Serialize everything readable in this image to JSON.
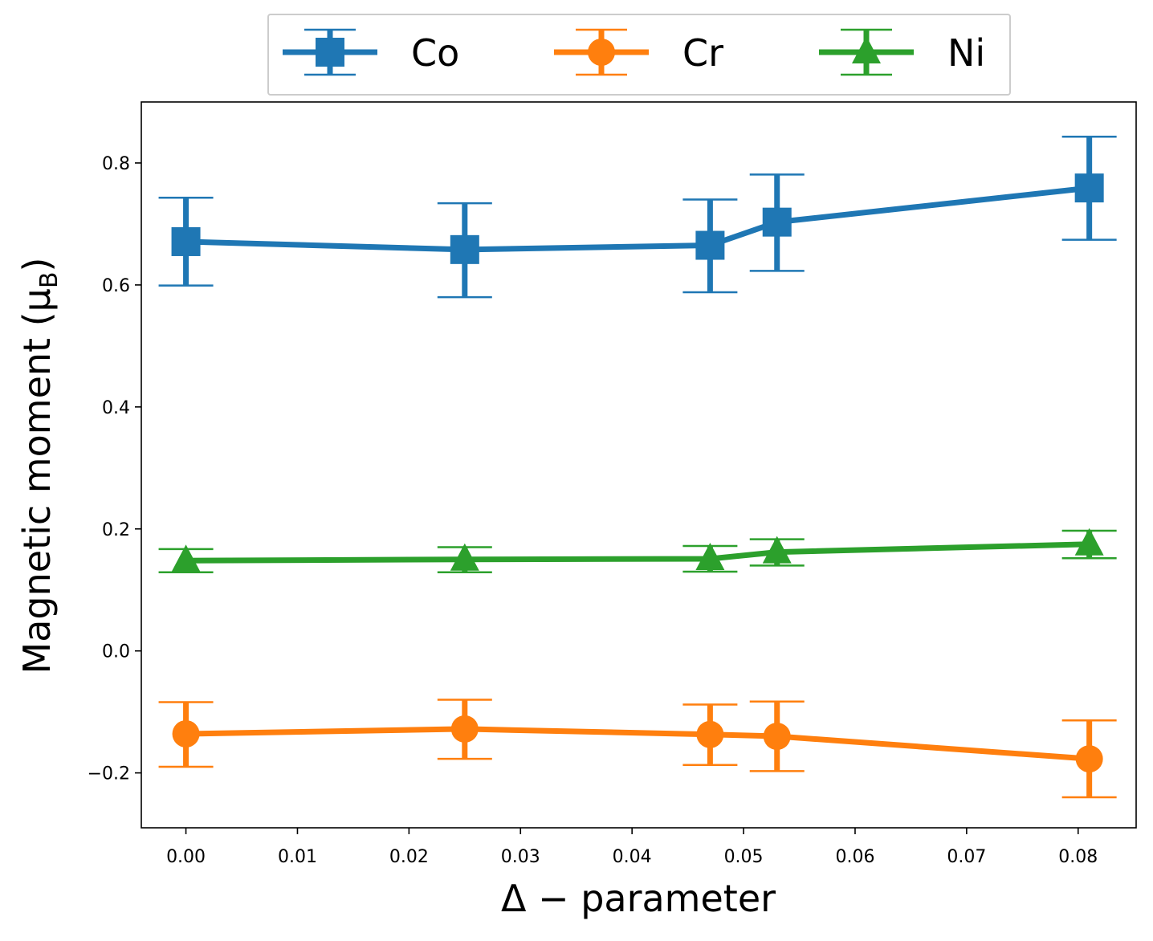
{
  "chart_data": {
    "type": "line",
    "title": "",
    "xlabel": "Δ − parameter",
    "ylabel_main": "Magnetic moment (μ",
    "ylabel_sub": "B",
    "ylabel_close": ")",
    "xlim": [
      -0.004,
      0.0852
    ],
    "ylim": [
      -0.29,
      0.9
    ],
    "x_ticks": [
      0.0,
      0.01,
      0.02,
      0.03,
      0.04,
      0.05,
      0.06,
      0.07,
      0.08
    ],
    "x_tick_labels": [
      "0.00",
      "0.01",
      "0.02",
      "0.03",
      "0.04",
      "0.05",
      "0.06",
      "0.07",
      "0.08"
    ],
    "y_ticks": [
      -0.2,
      0.0,
      0.2,
      0.4,
      0.6,
      0.8
    ],
    "y_tick_labels": [
      "−0.2",
      "0.0",
      "0.2",
      "0.4",
      "0.6",
      "0.8"
    ],
    "grid": false,
    "legend": {
      "placement": "top-center-outside",
      "columns": 3
    },
    "x": [
      0.0,
      0.025,
      0.047,
      0.053,
      0.081
    ],
    "series": [
      {
        "name": "Co",
        "color": "#1f77b4",
        "marker": "square",
        "values": [
          0.671,
          0.658,
          0.665,
          0.703,
          0.759
        ],
        "err_low": [
          0.599,
          0.58,
          0.588,
          0.623,
          0.674
        ],
        "err_high": [
          0.743,
          0.734,
          0.74,
          0.781,
          0.843
        ]
      },
      {
        "name": "Cr",
        "color": "#ff7f0e",
        "marker": "circle",
        "values": [
          -0.136,
          -0.128,
          -0.137,
          -0.14,
          -0.177
        ],
        "err_low": [
          -0.19,
          -0.177,
          -0.187,
          -0.197,
          -0.24
        ],
        "err_high": [
          -0.084,
          -0.08,
          -0.088,
          -0.083,
          -0.114
        ]
      },
      {
        "name": "Ni",
        "color": "#2ca02c",
        "marker": "triangle",
        "values": [
          0.148,
          0.15,
          0.151,
          0.162,
          0.175
        ],
        "err_low": [
          0.129,
          0.129,
          0.13,
          0.14,
          0.152
        ],
        "err_high": [
          0.167,
          0.17,
          0.172,
          0.183,
          0.197
        ]
      }
    ]
  }
}
